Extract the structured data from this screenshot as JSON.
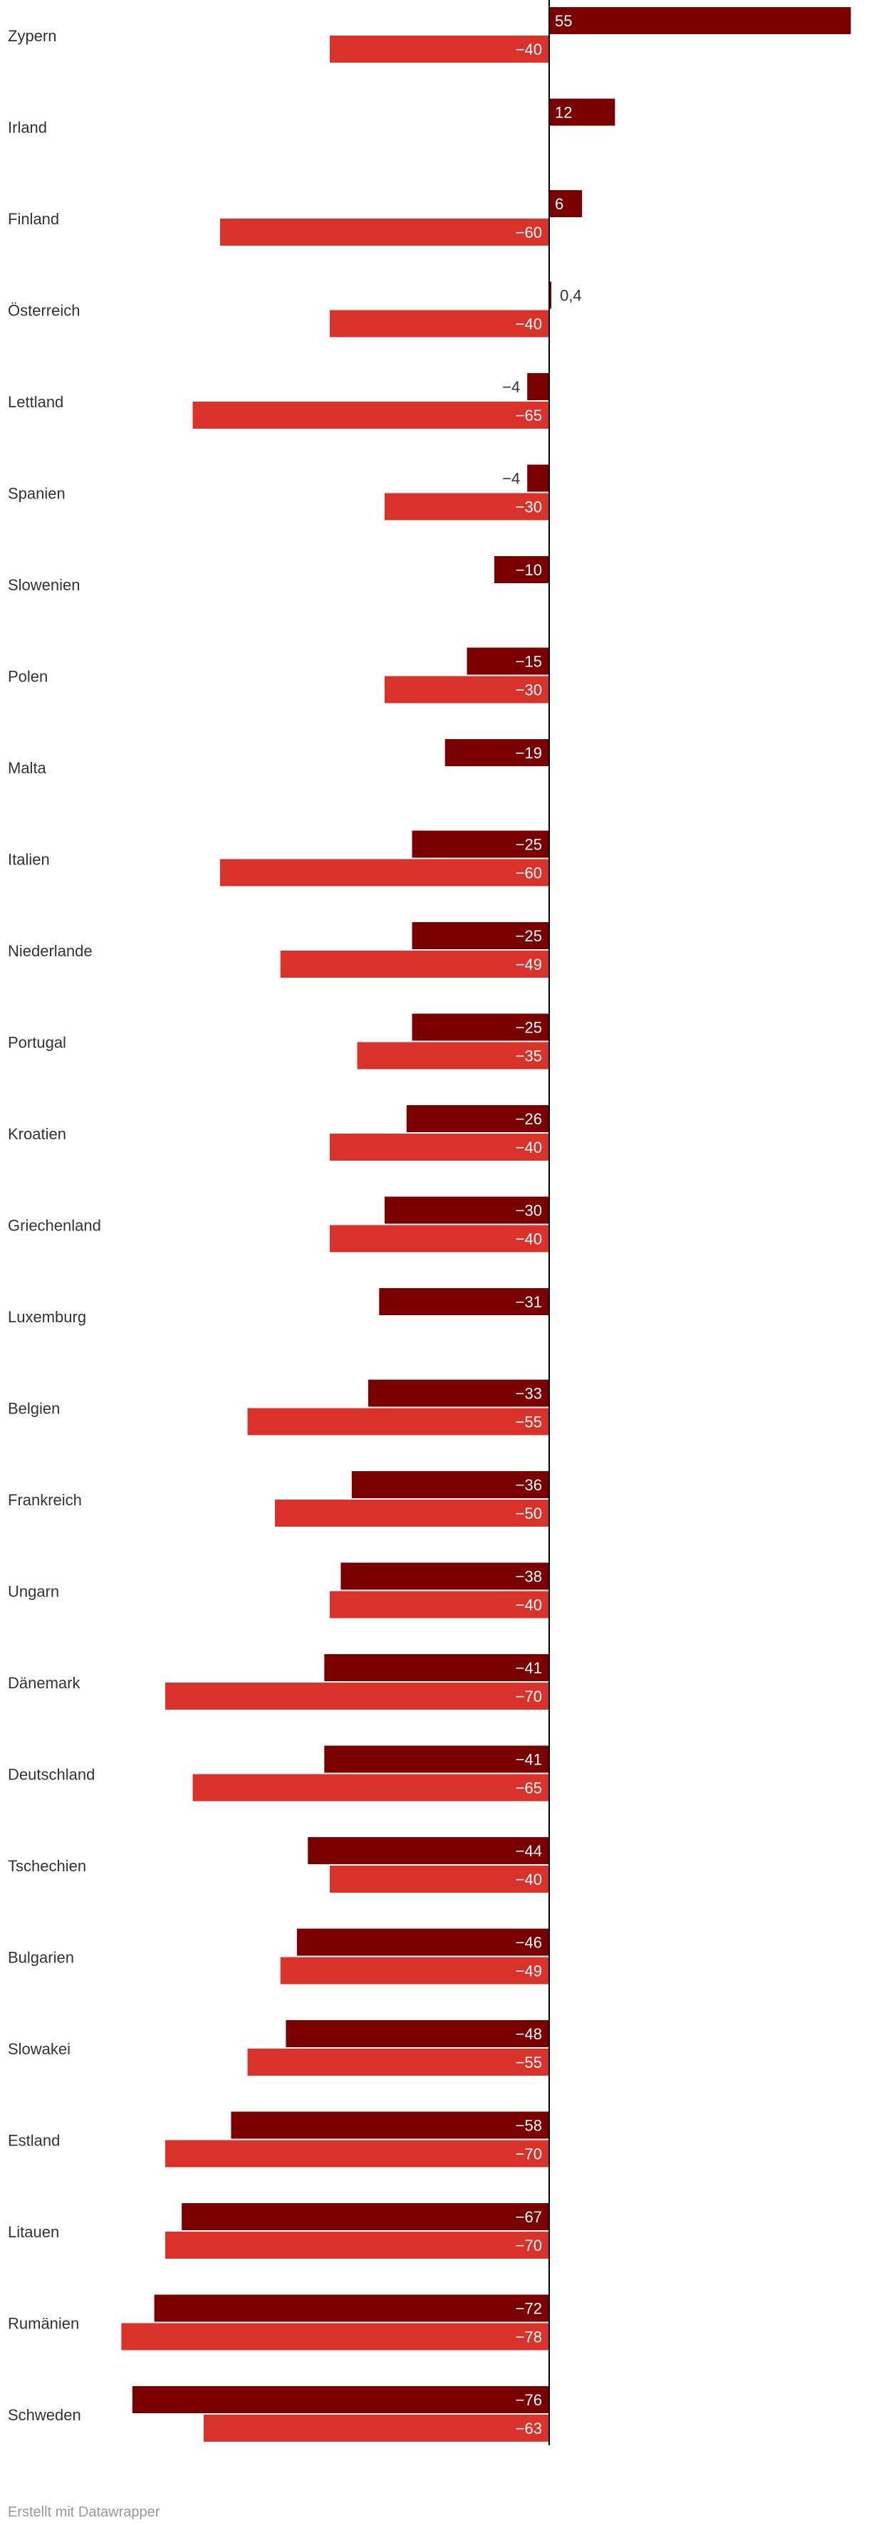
{
  "chart_data": {
    "type": "bar",
    "orientation": "horizontal",
    "colors": {
      "series1": "#7a0000",
      "series2": "#d8322b",
      "axis": "#000000"
    },
    "categories": [
      "Zypern",
      "Irland",
      "Finland",
      "Österreich",
      "Lettland",
      "Spanien",
      "Slowenien",
      "Polen",
      "Malta",
      "Italien",
      "Niederlande",
      "Portugal",
      "Kroatien",
      "Griechenland",
      "Luxemburg",
      "Belgien",
      "Frankreich",
      "Ungarn",
      "Dänemark",
      "Deutschland",
      "Tschechien",
      "Bulgarien",
      "Slowakei",
      "Estland",
      "Litauen",
      "Rumänien",
      "Schweden"
    ],
    "series": [
      {
        "values": [
          55,
          12,
          6,
          0.4,
          -4,
          -4,
          -10,
          -15,
          -19,
          -25,
          -25,
          -25,
          -26,
          -30,
          -31,
          -33,
          -36,
          -38,
          -41,
          -41,
          -44,
          -46,
          -48,
          -58,
          -67,
          -72,
          -76
        ],
        "labels": [
          "55",
          "12",
          "6",
          "0,4",
          "−4",
          "−4",
          "−10",
          "−15",
          "−19",
          "−25",
          "−25",
          "−25",
          "−26",
          "−30",
          "−31",
          "−33",
          "−36",
          "−38",
          "−41",
          "−41",
          "−44",
          "−46",
          "−48",
          "−58",
          "−67",
          "−72",
          "−76"
        ]
      },
      {
        "values": [
          -40,
          null,
          -60,
          -40,
          -65,
          -30,
          null,
          -30,
          null,
          -60,
          -49,
          -35,
          -40,
          -40,
          null,
          -55,
          -50,
          -40,
          -70,
          -65,
          -40,
          -49,
          -55,
          -70,
          -70,
          -78,
          -63
        ],
        "labels": [
          "−40",
          null,
          "−60",
          "−40",
          "−65",
          "−30",
          null,
          "−30",
          null,
          "−60",
          "−49",
          "−35",
          "−40",
          "−40",
          null,
          "−55",
          "−50",
          "−40",
          "−70",
          "−65",
          "−40",
          "−49",
          "−55",
          "−70",
          "−70",
          "−78",
          "−63"
        ]
      }
    ]
  },
  "footer": {
    "credit": "Erstellt mit Datawrapper"
  }
}
